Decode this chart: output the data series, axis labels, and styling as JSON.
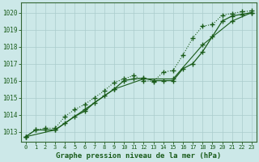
{
  "title": "Graphe pression niveau de la mer (hPa)",
  "bg_color": "#cce8e8",
  "grid_color": "#aacccc",
  "line_color": "#1a5c1a",
  "spine_color": "#336633",
  "xlim": [
    -0.5,
    23.5
  ],
  "ylim": [
    1012.4,
    1020.6
  ],
  "yticks": [
    1013,
    1014,
    1015,
    1016,
    1017,
    1018,
    1019,
    1020
  ],
  "xticks": [
    0,
    1,
    2,
    3,
    4,
    5,
    6,
    7,
    8,
    9,
    10,
    11,
    12,
    13,
    14,
    15,
    16,
    17,
    18,
    19,
    20,
    21,
    22,
    23
  ],
  "line1_x": [
    0,
    1,
    2,
    3,
    4,
    5,
    6,
    7,
    8,
    9,
    10,
    11,
    12,
    13,
    14,
    15,
    16,
    17,
    18,
    19,
    20,
    21,
    22,
    23
  ],
  "line1_y": [
    1012.7,
    1013.1,
    1013.1,
    1013.1,
    1013.5,
    1013.9,
    1014.2,
    1014.7,
    1015.1,
    1015.5,
    1016.0,
    1016.1,
    1016.15,
    1016.0,
    1016.0,
    1016.0,
    1016.7,
    1017.0,
    1017.7,
    1018.6,
    1019.5,
    1019.8,
    1019.9,
    1020.0
  ],
  "line2_x": [
    0,
    1,
    2,
    3,
    4,
    5,
    6,
    7,
    8,
    9,
    10,
    11,
    12,
    13,
    14,
    15,
    16,
    17,
    18,
    19,
    20,
    21,
    22,
    23
  ],
  "line2_y": [
    1012.7,
    1013.1,
    1013.2,
    1013.2,
    1013.9,
    1014.3,
    1014.6,
    1015.0,
    1015.4,
    1015.9,
    1016.1,
    1016.3,
    1016.0,
    1015.95,
    1016.5,
    1016.6,
    1017.5,
    1018.5,
    1019.2,
    1019.3,
    1019.85,
    1019.95,
    1020.05,
    1020.1
  ],
  "line3_x": [
    0,
    3,
    6,
    9,
    12,
    15,
    18,
    21,
    23
  ],
  "line3_y": [
    1012.7,
    1013.1,
    1014.3,
    1015.5,
    1016.1,
    1016.1,
    1018.1,
    1019.5,
    1020.0
  ]
}
